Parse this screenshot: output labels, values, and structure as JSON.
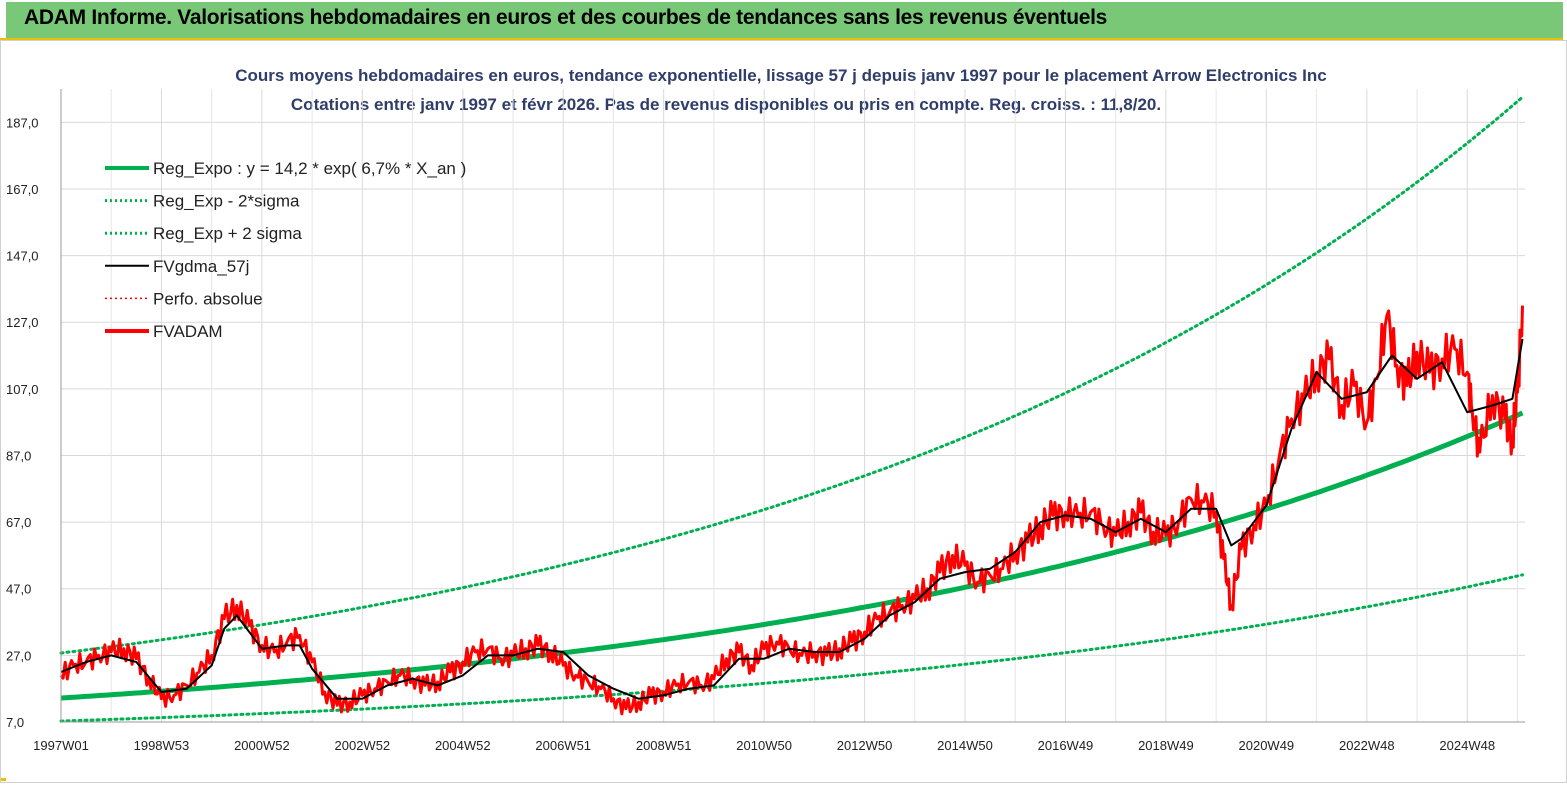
{
  "banner": {
    "title": "ADAM Informe. Valorisations hebdomadaires en euros et des courbes de tendances sans les revenus éventuels"
  },
  "colors": {
    "banner_bg": "#78c878",
    "regression": "#00b050",
    "smoothed": "#000000",
    "fvadam": "#ff0000",
    "perfo": "#ff0000"
  },
  "chart_data": {
    "type": "line",
    "title": "Cours moyens hebdomadaires en euros, tendance exponentielle, lissage 57 j depuis janv 1997 pour le placement Arrow Electronics Inc",
    "subtitle": "Cotations entre janv 1997 et févr 2026. Pas de revenus disponibles ou pris en compte. Reg. croiss. : 11,8/20.",
    "xlabel": "",
    "ylabel": "",
    "ylim": [
      7.0,
      197.0
    ],
    "xlim": [
      1997.0,
      2026.15
    ],
    "grid": true,
    "legend_position": "top-left",
    "y_ticks": [
      "7,0",
      "27,0",
      "47,0",
      "67,0",
      "87,0",
      "107,0",
      "127,0",
      "147,0",
      "167,0",
      "187,0"
    ],
    "x_ticks": [
      {
        "label": "1997W01",
        "x": 1997.0
      },
      {
        "label": "1998W53",
        "x": 1999.0
      },
      {
        "label": "2000W52",
        "x": 2001.0
      },
      {
        "label": "2002W52",
        "x": 2003.0
      },
      {
        "label": "2004W52",
        "x": 2005.0
      },
      {
        "label": "2006W51",
        "x": 2007.0
      },
      {
        "label": "2008W51",
        "x": 2009.0
      },
      {
        "label": "2010W50",
        "x": 2011.0
      },
      {
        "label": "2012W50",
        "x": 2013.0
      },
      {
        "label": "2014W50",
        "x": 2015.0
      },
      {
        "label": "2016W49",
        "x": 2017.0
      },
      {
        "label": "2018W49",
        "x": 2019.0
      },
      {
        "label": "2020W49",
        "x": 2021.0
      },
      {
        "label": "2022W48",
        "x": 2023.0
      },
      {
        "label": "2024W48",
        "x": 2025.0
      }
    ],
    "regression": {
      "a": 14.2,
      "rate": 0.067,
      "sigma_factor": 1.95,
      "x_start": 1997.0,
      "x_end": 2026.15
    },
    "legend": [
      {
        "name": "Reg_Expo : y = 14,2 * exp( 6,7% *  X_an )",
        "color": "#00b050",
        "style": "thick"
      },
      {
        "name": "Reg_Exp - 2*sigma",
        "color": "#00b050",
        "style": "dotted"
      },
      {
        "name": "Reg_Exp + 2 sigma",
        "color": "#00b050",
        "style": "dotted"
      },
      {
        "name": "FVgdma_57j",
        "color": "#000000",
        "style": "solid"
      },
      {
        "name": "Perfo. absolue",
        "color": "#ff0000",
        "style": "dotted"
      },
      {
        "name": "FVADAM",
        "color": "#ff0000",
        "style": "thick"
      }
    ],
    "series": [
      {
        "name": "FVADAM",
        "x": [
          1997.0,
          1997.25,
          1997.5,
          1997.75,
          1998.0,
          1998.25,
          1998.5,
          1998.75,
          1999.0,
          1999.25,
          1999.5,
          1999.75,
          2000.0,
          2000.25,
          2000.5,
          2000.75,
          2001.0,
          2001.25,
          2001.5,
          2001.75,
          2002.0,
          2002.25,
          2002.5,
          2002.75,
          2003.0,
          2003.25,
          2003.5,
          2003.75,
          2004.0,
          2004.25,
          2004.5,
          2004.75,
          2005.0,
          2005.25,
          2005.5,
          2005.75,
          2006.0,
          2006.25,
          2006.5,
          2006.75,
          2007.0,
          2007.25,
          2007.5,
          2007.75,
          2008.0,
          2008.25,
          2008.5,
          2008.75,
          2009.0,
          2009.25,
          2009.5,
          2009.75,
          2010.0,
          2010.25,
          2010.5,
          2010.75,
          2011.0,
          2011.25,
          2011.5,
          2011.75,
          2012.0,
          2012.25,
          2012.5,
          2012.75,
          2013.0,
          2013.25,
          2013.5,
          2013.75,
          2014.0,
          2014.25,
          2014.5,
          2014.75,
          2015.0,
          2015.25,
          2015.5,
          2015.75,
          2016.0,
          2016.25,
          2016.5,
          2016.75,
          2017.0,
          2017.25,
          2017.5,
          2017.75,
          2018.0,
          2018.25,
          2018.5,
          2018.75,
          2019.0,
          2019.25,
          2019.5,
          2019.75,
          2020.0,
          2020.15,
          2020.3,
          2020.5,
          2020.75,
          2021.0,
          2021.25,
          2021.5,
          2021.75,
          2022.0,
          2022.25,
          2022.5,
          2022.75,
          2023.0,
          2023.2,
          2023.4,
          2023.6,
          2023.8,
          2024.0,
          2024.25,
          2024.5,
          2024.75,
          2025.0,
          2025.1,
          2025.25,
          2025.5,
          2025.75,
          2025.9,
          2026.0,
          2026.1
        ],
        "values": [
          21,
          24,
          25,
          27,
          28,
          29,
          26,
          20,
          14,
          15,
          18,
          22,
          27,
          38,
          42,
          36,
          30,
          28,
          31,
          33,
          25,
          16,
          12,
          13,
          15,
          17,
          19,
          21,
          20,
          18,
          19,
          22,
          25,
          28,
          29,
          26,
          27,
          29,
          30,
          28,
          24,
          21,
          19,
          17,
          14,
          11,
          13,
          15,
          16,
          18,
          19,
          18,
          20,
          26,
          28,
          24,
          29,
          31,
          29,
          27,
          28,
          27,
          29,
          31,
          34,
          38,
          40,
          42,
          44,
          47,
          52,
          57,
          54,
          49,
          51,
          53,
          58,
          61,
          66,
          69,
          70,
          69,
          70,
          66,
          63,
          67,
          70,
          64,
          63,
          67,
          74,
          73,
          70,
          56,
          42,
          59,
          66,
          72,
          86,
          98,
          104,
          112,
          116,
          102,
          108,
          97,
          110,
          129,
          114,
          108,
          118,
          112,
          116,
          119,
          112,
          100,
          88,
          105,
          98,
          92,
          106,
          132
        ]
      },
      {
        "name": "FVgdma_57j",
        "x": [
          1997.0,
          1997.5,
          1998.0,
          1998.5,
          1999.0,
          1999.5,
          2000.0,
          2000.25,
          2000.5,
          2000.75,
          2001.0,
          2001.5,
          2001.75,
          2002.0,
          2002.5,
          2003.0,
          2003.5,
          2004.0,
          2004.5,
          2005.0,
          2005.5,
          2006.0,
          2006.5,
          2007.0,
          2007.5,
          2008.0,
          2008.5,
          2009.0,
          2009.5,
          2010.0,
          2010.5,
          2011.0,
          2011.5,
          2012.0,
          2012.5,
          2013.0,
          2013.5,
          2014.0,
          2014.5,
          2015.0,
          2015.5,
          2016.0,
          2016.5,
          2017.0,
          2017.5,
          2018.0,
          2018.5,
          2019.0,
          2019.5,
          2020.0,
          2020.3,
          2020.5,
          2021.0,
          2021.5,
          2022.0,
          2022.5,
          2023.0,
          2023.5,
          2024.0,
          2024.5,
          2025.0,
          2025.5,
          2025.9,
          2026.1
        ],
        "values": [
          22,
          25,
          27,
          25,
          16,
          17,
          24,
          35,
          39,
          34,
          29,
          30,
          30,
          23,
          14,
          14,
          18,
          20,
          18,
          21,
          27,
          27,
          29,
          28,
          21,
          17,
          14,
          15,
          17,
          18,
          26,
          26,
          29,
          28,
          28,
          32,
          39,
          43,
          50,
          52,
          53,
          58,
          67,
          69,
          68,
          64,
          68,
          64,
          71,
          71,
          60,
          62,
          72,
          95,
          112,
          104,
          106,
          117,
          110,
          115,
          100,
          102,
          104,
          122
        ]
      }
    ]
  }
}
